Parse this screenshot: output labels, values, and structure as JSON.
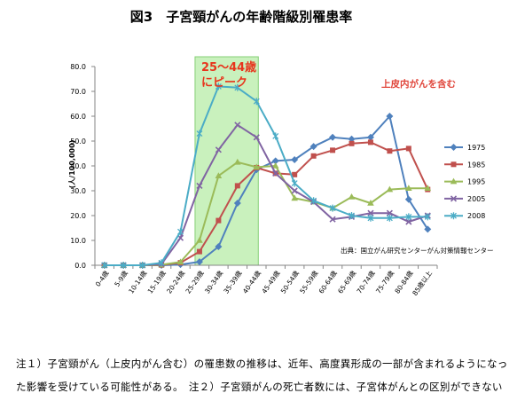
{
  "chart_data": {
    "type": "line",
    "title": "図3　子宮頸がんの年齢階級別罹患率",
    "xlabel": "",
    "ylabel": "(人/100,000)",
    "ylim": [
      0,
      80
    ],
    "yticks": [
      "0.0",
      "10.0",
      "20.0",
      "30.0",
      "40.0",
      "50.0",
      "60.0",
      "70.0",
      "80.0"
    ],
    "grid": false,
    "legend_position": "right",
    "categories": [
      "0-4歳",
      "5-9歳",
      "10-14歳",
      "15-19歳",
      "20-24歳",
      "25-29歳",
      "30-34歳",
      "35-39歳",
      "40-44歳",
      "45-49歳",
      "50-54歳",
      "55-59歳",
      "60-64歳",
      "65-69歳",
      "70-74歳",
      "75-79歳",
      "80-84歳",
      "85歳以上"
    ],
    "series": [
      {
        "name": "1975",
        "color": "#4f81bd",
        "marker": "diamond",
        "values": [
          0,
          0,
          0,
          0,
          0.3,
          1.4,
          7.5,
          25.0,
          38.5,
          42.0,
          42.5,
          47.8,
          51.5,
          50.8,
          51.5,
          60.0,
          26.5,
          14.5
        ]
      },
      {
        "name": "1985",
        "color": "#c0504d",
        "marker": "square",
        "values": [
          0,
          0,
          0,
          0.1,
          1.0,
          5.5,
          18.0,
          32.0,
          39.3,
          37.0,
          36.5,
          44.0,
          46.3,
          49.0,
          49.5,
          46.0,
          47.0,
          30.5
        ]
      },
      {
        "name": "1995",
        "color": "#9bbb59",
        "marker": "triangle",
        "values": [
          0,
          0,
          0,
          0.2,
          1.3,
          10.0,
          36.0,
          41.5,
          39.5,
          40.0,
          27.0,
          25.5,
          23.0,
          27.5,
          25.0,
          30.5,
          31.0,
          31.0
        ]
      },
      {
        "name": "2005",
        "color": "#8064a2",
        "marker": "x",
        "values": [
          0,
          0,
          0,
          0.5,
          11.0,
          32.0,
          46.5,
          56.5,
          51.5,
          37.0,
          30.0,
          25.5,
          18.5,
          19.5,
          21.0,
          21.0,
          17.5,
          20.0
        ]
      },
      {
        "name": "2008",
        "color": "#4bacc6",
        "marker": "star",
        "values": [
          0,
          0,
          0,
          1.0,
          13.5,
          53.0,
          72.0,
          71.5,
          66.0,
          52.0,
          33.0,
          26.0,
          23.0,
          20.0,
          19.0,
          19.0,
          19.5,
          19.5
        ]
      }
    ],
    "highlight": {
      "range": [
        "25-29歳",
        "40-44歳"
      ],
      "label": [
        "25～44歳",
        "にピーク"
      ],
      "color": "#c9f1bd",
      "border_color": "#86cf76",
      "label_color": "#e8341c"
    }
  },
  "note": {
    "text": "上皮内がんを含む",
    "color": "#e0453a"
  },
  "source": "出典：国立がん研究センターがん対策情報センター",
  "footnotes": [
    "注１）子宮頸がん（上皮内がん含む）の罹患数の推移は、近年、高度異形成の一部が含まれるようになっ",
    "た影響を受けている可能性がある。　注２）子宮頸がんの死亡者数には、子宮体がんとの区別ができない"
  ]
}
